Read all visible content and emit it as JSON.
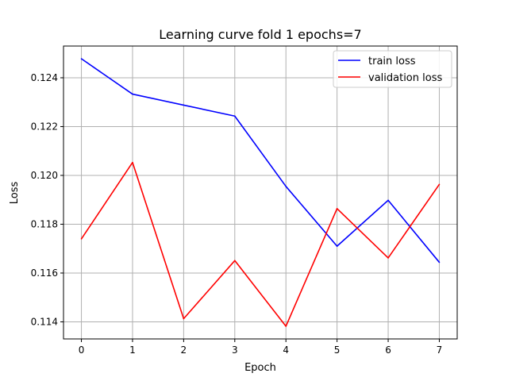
{
  "chart_data": {
    "type": "line",
    "title": "Learning curve fold 1 epochs=7",
    "xlabel": "Epoch",
    "ylabel": "Loss",
    "x": [
      0,
      1,
      2,
      3,
      4,
      5,
      6,
      7
    ],
    "xlim": [
      -0.35,
      7.35
    ],
    "ylim": [
      0.1133,
      0.1253
    ],
    "xticks": [
      "0",
      "1",
      "2",
      "3",
      "4",
      "5",
      "6",
      "7"
    ],
    "yticks": [
      "0.114",
      "0.116",
      "0.118",
      "0.120",
      "0.122",
      "0.124"
    ],
    "grid": true,
    "legend_position": "top-right",
    "series": [
      {
        "name": "train loss",
        "color": "#0000ff",
        "values": [
          0.12478,
          0.12333,
          0.12288,
          0.12243,
          0.11955,
          0.1171,
          0.11898,
          0.11644
        ]
      },
      {
        "name": "validation loss",
        "color": "#ff0000",
        "values": [
          0.1174,
          0.12053,
          0.11413,
          0.11651,
          0.11382,
          0.11864,
          0.11662,
          0.11963
        ]
      }
    ]
  }
}
